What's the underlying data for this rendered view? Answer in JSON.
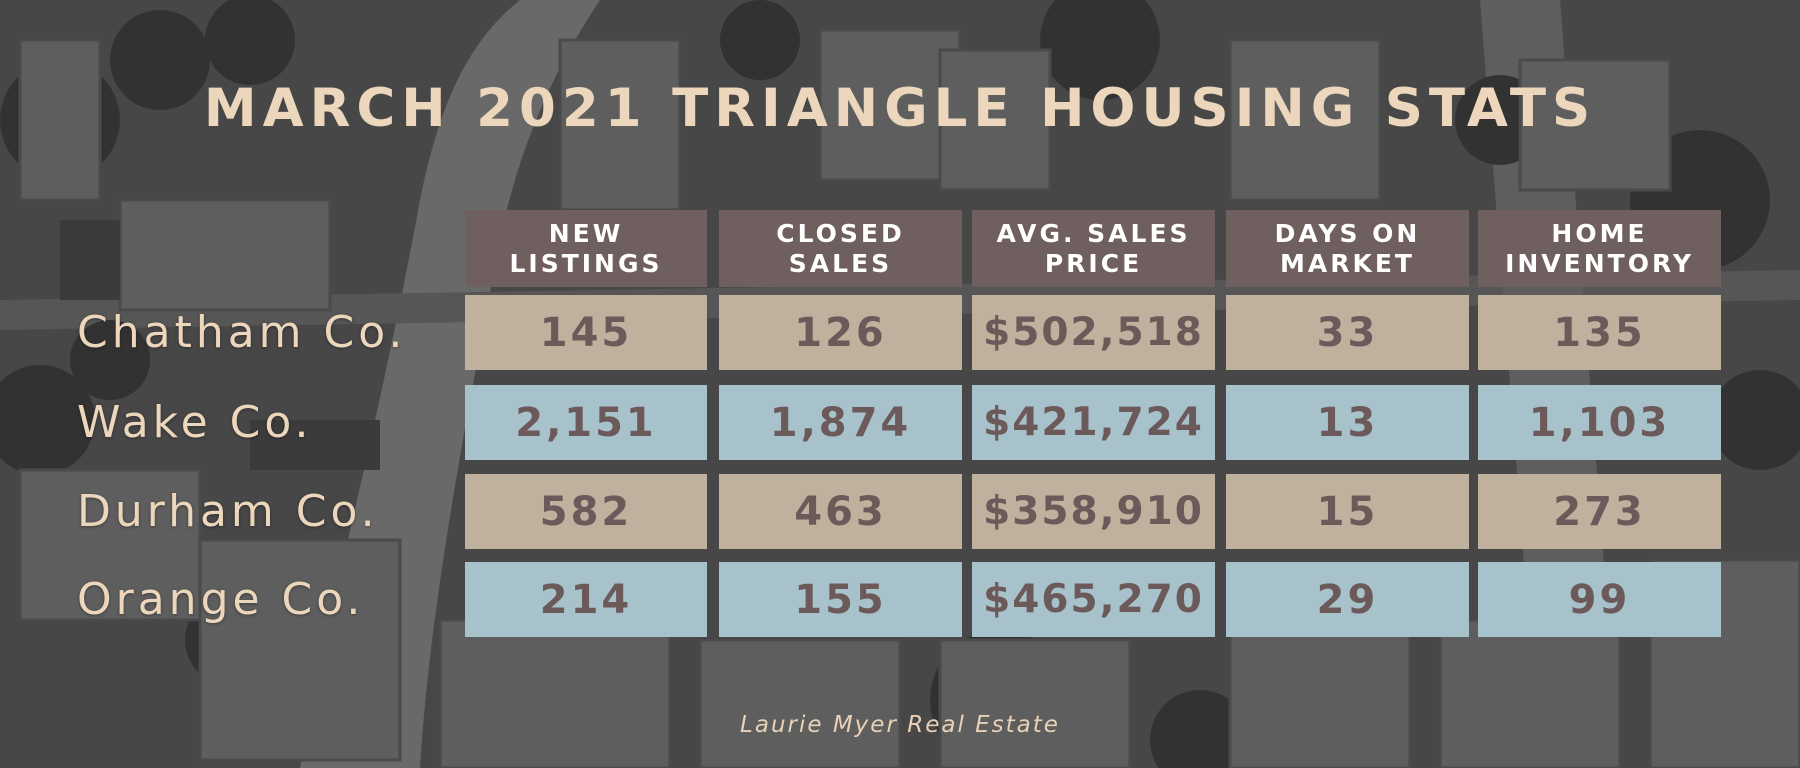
{
  "title": "MARCH 2021 TRIANGLE HOUSING STATS",
  "columns": [
    "NEW\nLISTINGS",
    "CLOSED\nSALES",
    "AVG. SALES\nPRICE",
    "DAYS ON\nMARKET",
    "HOME\nINVENTORY"
  ],
  "rows": [
    {
      "label": "Chatham Co.",
      "new_listings": "145",
      "closed_sales": "126",
      "avg_sales_price": "$502,518",
      "days_on_market": "33",
      "home_inventory": "135"
    },
    {
      "label": "Wake Co.",
      "new_listings": "2,151",
      "closed_sales": "1,874",
      "avg_sales_price": "$421,724",
      "days_on_market": "13",
      "home_inventory": "1,103"
    },
    {
      "label": "Durham Co.",
      "new_listings": "582",
      "closed_sales": "463",
      "avg_sales_price": "$358,910",
      "days_on_market": "15",
      "home_inventory": "273"
    },
    {
      "label": "Orange Co.",
      "new_listings": "214",
      "closed_sales": "155",
      "avg_sales_price": "$465,270",
      "days_on_market": "29",
      "home_inventory": "99"
    }
  ],
  "footer": "Laurie Myer Real Estate",
  "colors": {
    "title": "#ecd6bc",
    "header_bg": "#6f5f5e",
    "row_tan": "#c0b09e",
    "row_blue": "#a8c2cc",
    "value_text": "#6b5a59"
  }
}
